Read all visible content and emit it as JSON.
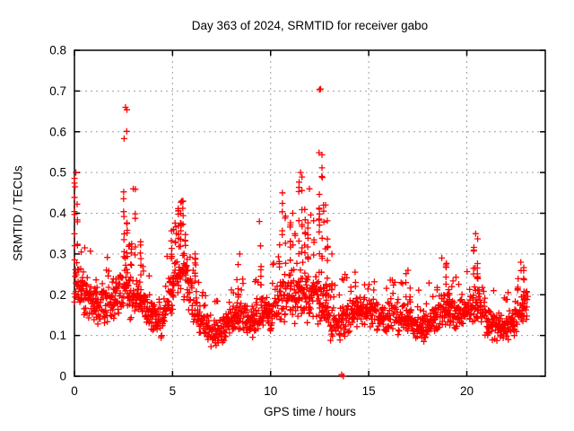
{
  "figure": {
    "background": "#ffffff",
    "text_color": "#000000"
  },
  "chart_data": {
    "type": "scatter",
    "title": "Day 363 of 2024, SRMTID for receiver gabo",
    "xlabel": "GPS time / hours",
    "ylabel": "SRMTID / TECUs",
    "xlim": [
      0,
      24
    ],
    "ylim": [
      0,
      0.8
    ],
    "xticks": {
      "values": [
        0,
        5,
        10,
        15,
        20
      ],
      "labels": [
        "0",
        "5",
        "10",
        "15",
        "20"
      ]
    },
    "yticks": {
      "values": [
        0,
        0.1,
        0.2,
        0.3,
        0.4,
        0.5,
        0.6,
        0.7,
        0.8
      ],
      "labels": [
        "0",
        "0.1",
        "0.2",
        "0.3",
        "0.4",
        "0.5",
        "0.6",
        "0.7",
        "0.8"
      ]
    },
    "grid": true,
    "legend": "none",
    "marker": {
      "shape": "plus",
      "color": "#ff0000",
      "size": 7
    },
    "frame_color": "#000000",
    "grid_color": "#a0a0a0",
    "t_max": 23.1,
    "n_band_points": 1300,
    "seed": 1363,
    "envelope": [
      [
        0.0,
        0.15,
        0.32
      ],
      [
        0.5,
        0.13,
        0.26
      ],
      [
        1.0,
        0.12,
        0.24
      ],
      [
        1.5,
        0.13,
        0.24
      ],
      [
        2.0,
        0.12,
        0.25
      ],
      [
        2.6,
        0.15,
        0.3
      ],
      [
        3.0,
        0.13,
        0.25
      ],
      [
        3.5,
        0.12,
        0.22
      ],
      [
        4.0,
        0.1,
        0.2
      ],
      [
        4.5,
        0.09,
        0.2
      ],
      [
        5.0,
        0.15,
        0.3
      ],
      [
        5.5,
        0.18,
        0.34
      ],
      [
        6.0,
        0.12,
        0.25
      ],
      [
        6.5,
        0.09,
        0.18
      ],
      [
        7.0,
        0.07,
        0.14
      ],
      [
        7.5,
        0.08,
        0.15
      ],
      [
        8.0,
        0.09,
        0.18
      ],
      [
        8.5,
        0.1,
        0.2
      ],
      [
        9.0,
        0.09,
        0.18
      ],
      [
        9.5,
        0.1,
        0.22
      ],
      [
        10.0,
        0.1,
        0.2
      ],
      [
        10.5,
        0.12,
        0.26
      ],
      [
        11.0,
        0.12,
        0.28
      ],
      [
        11.5,
        0.13,
        0.3
      ],
      [
        12.0,
        0.12,
        0.28
      ],
      [
        12.5,
        0.12,
        0.3
      ],
      [
        13.0,
        0.08,
        0.22
      ],
      [
        13.5,
        0.08,
        0.18
      ],
      [
        14.0,
        0.1,
        0.2
      ],
      [
        14.5,
        0.11,
        0.21
      ],
      [
        15.0,
        0.11,
        0.2
      ],
      [
        15.5,
        0.1,
        0.19
      ],
      [
        16.0,
        0.1,
        0.19
      ],
      [
        16.5,
        0.09,
        0.18
      ],
      [
        17.0,
        0.1,
        0.19
      ],
      [
        17.5,
        0.08,
        0.17
      ],
      [
        18.0,
        0.08,
        0.17
      ],
      [
        18.5,
        0.1,
        0.2
      ],
      [
        19.0,
        0.11,
        0.21
      ],
      [
        19.5,
        0.1,
        0.2
      ],
      [
        20.0,
        0.11,
        0.22
      ],
      [
        20.5,
        0.12,
        0.24
      ],
      [
        21.0,
        0.09,
        0.19
      ],
      [
        21.5,
        0.08,
        0.16
      ],
      [
        22.0,
        0.08,
        0.16
      ],
      [
        22.5,
        0.09,
        0.19
      ],
      [
        23.1,
        0.14,
        0.24
      ]
    ],
    "spikes": [
      {
        "t0": 0.0,
        "t1": 0.15,
        "peak": 0.5,
        "n": 12,
        "cols": 2
      },
      {
        "t0": 2.52,
        "t1": 2.68,
        "peak": 0.66,
        "n": 16,
        "cols": 2
      },
      {
        "t0": 2.9,
        "t1": 3.1,
        "peak": 0.46,
        "n": 8,
        "cols": 2
      },
      {
        "t0": 3.3,
        "t1": 3.45,
        "peak": 0.33,
        "n": 5,
        "cols": 1
      },
      {
        "t0": 4.95,
        "t1": 5.15,
        "peak": 0.36,
        "n": 8,
        "cols": 2
      },
      {
        "t0": 5.3,
        "t1": 5.65,
        "peak": 0.43,
        "n": 26,
        "cols": 4
      },
      {
        "t0": 6.1,
        "t1": 6.2,
        "peak": 0.3,
        "n": 5,
        "cols": 1
      },
      {
        "t0": 8.35,
        "t1": 8.5,
        "peak": 0.3,
        "n": 6,
        "cols": 2
      },
      {
        "t0": 9.35,
        "t1": 9.5,
        "peak": 0.38,
        "n": 7,
        "cols": 2
      },
      {
        "t0": 10.45,
        "t1": 10.75,
        "peak": 0.45,
        "n": 12,
        "cols": 3
      },
      {
        "t0": 11.0,
        "t1": 11.25,
        "peak": 0.4,
        "n": 10,
        "cols": 2
      },
      {
        "t0": 11.45,
        "t1": 11.6,
        "peak": 0.5,
        "n": 12,
        "cols": 2
      },
      {
        "t0": 11.75,
        "t1": 12.2,
        "peak": 0.46,
        "n": 18,
        "cols": 4
      },
      {
        "t0": 12.48,
        "t1": 12.62,
        "peak": 0.705,
        "n": 18,
        "cols": 2
      },
      {
        "t0": 12.7,
        "t1": 12.9,
        "peak": 0.42,
        "n": 8,
        "cols": 2
      },
      {
        "t0": 13.05,
        "t1": 13.2,
        "peak": 0.3,
        "n": 5,
        "cols": 1
      },
      {
        "t0": 16.9,
        "t1": 17.1,
        "peak": 0.26,
        "n": 5,
        "cols": 2
      },
      {
        "t0": 18.5,
        "t1": 18.95,
        "peak": 0.29,
        "n": 8,
        "cols": 2
      },
      {
        "t0": 20.35,
        "t1": 20.55,
        "peak": 0.35,
        "n": 12,
        "cols": 2
      },
      {
        "t0": 22.6,
        "t1": 22.9,
        "peak": 0.28,
        "n": 8,
        "cols": 2
      }
    ],
    "extra_points": [
      [
        13.62,
        0.004
      ],
      [
        13.7,
        0.0
      ],
      [
        0.03,
        0.465
      ]
    ]
  }
}
